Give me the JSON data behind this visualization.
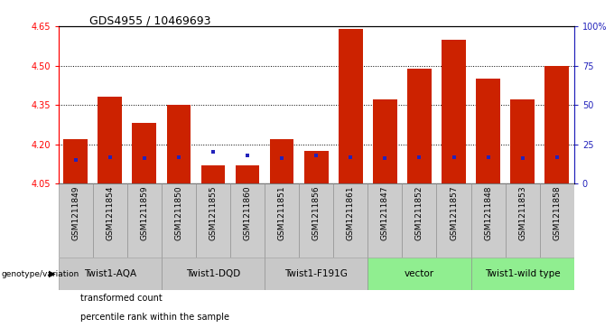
{
  "title": "GDS4955 / 10469693",
  "samples": [
    "GSM1211849",
    "GSM1211854",
    "GSM1211859",
    "GSM1211850",
    "GSM1211855",
    "GSM1211860",
    "GSM1211851",
    "GSM1211856",
    "GSM1211861",
    "GSM1211847",
    "GSM1211852",
    "GSM1211857",
    "GSM1211848",
    "GSM1211853",
    "GSM1211858"
  ],
  "transformed_counts": [
    4.22,
    4.38,
    4.28,
    4.35,
    4.12,
    4.12,
    4.22,
    4.175,
    4.64,
    4.37,
    4.49,
    4.6,
    4.45,
    4.37,
    4.5
  ],
  "percentile_ranks": [
    15,
    17,
    16,
    17,
    20,
    18,
    16,
    18,
    17,
    16,
    17,
    17,
    17,
    16,
    17
  ],
  "groups": [
    {
      "label": "Twist1-AQA",
      "indices": [
        0,
        1,
        2
      ],
      "color": "#c8c8c8"
    },
    {
      "label": "Twist1-DQD",
      "indices": [
        3,
        4,
        5
      ],
      "color": "#c8c8c8"
    },
    {
      "label": "Twist1-F191G",
      "indices": [
        6,
        7,
        8
      ],
      "color": "#c8c8c8"
    },
    {
      "label": "vector",
      "indices": [
        9,
        10,
        11
      ],
      "color": "#90ee90"
    },
    {
      "label": "Twist1-wild type",
      "indices": [
        12,
        13,
        14
      ],
      "color": "#90ee90"
    }
  ],
  "bar_color": "#cc2200",
  "blue_color": "#2222bb",
  "ymin": 4.05,
  "ymax": 4.65,
  "yticks": [
    4.05,
    4.2,
    4.35,
    4.5,
    4.65
  ],
  "grid_lines": [
    4.2,
    4.35,
    4.5
  ],
  "right_yticks_pct": [
    0,
    25,
    50,
    75,
    100
  ],
  "right_ytick_labels": [
    "0",
    "25",
    "50",
    "75",
    "100%"
  ],
  "bar_width": 0.7,
  "legend_red": "transformed count",
  "legend_blue": "percentile rank within the sample",
  "genotype_label": "genotype/variation",
  "percentile_scale": 100,
  "sample_cell_color": "#cccccc",
  "title_fontsize": 9,
  "tick_fontsize": 7,
  "label_fontsize": 6.5,
  "group_fontsize": 7.5
}
